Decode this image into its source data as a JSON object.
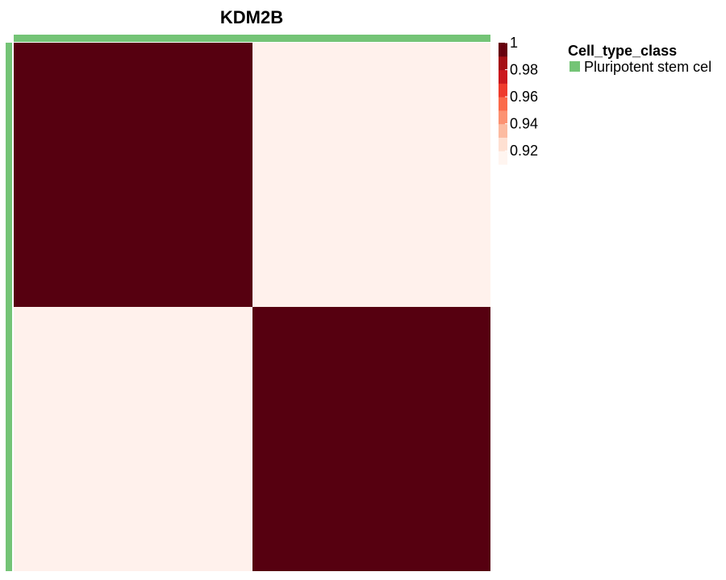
{
  "chart_data": {
    "type": "heatmap",
    "title": "KDM2B",
    "rows": 2,
    "cols": 2,
    "values": [
      [
        1,
        0.91
      ],
      [
        0.91,
        1
      ]
    ],
    "colorbar": {
      "min": 0.91,
      "max": 1,
      "ticks": [
        "1",
        "0.98",
        "0.96",
        "0.94",
        "0.92"
      ],
      "tick_values": [
        1,
        0.98,
        0.96,
        0.94,
        0.92
      ],
      "colors": [
        "#fff5f0",
        "#fee0d2",
        "#fcbba1",
        "#fc9272",
        "#fb6a4a",
        "#ef3b2c",
        "#cb181d",
        "#a50f15",
        "#67000d"
      ]
    },
    "annotation": {
      "title": "Cell_type_class",
      "entries": [
        {
          "label": "Pluripotent stem cel",
          "color": "#74c476"
        }
      ]
    },
    "colors": {
      "high": "#560010",
      "low": "#fff1ec",
      "annotation": "#74c476"
    }
  }
}
